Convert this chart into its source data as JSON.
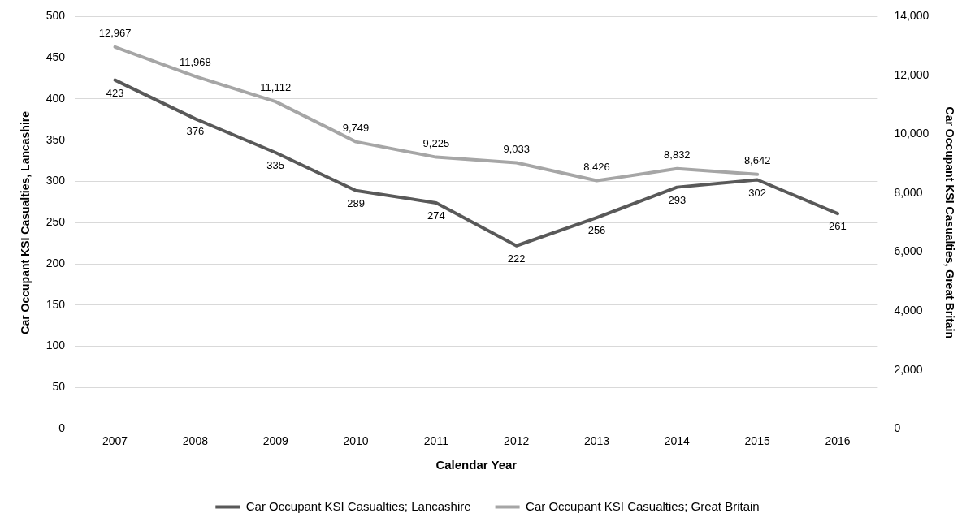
{
  "chart_data": {
    "type": "line",
    "categories": [
      "2007",
      "2008",
      "2009",
      "2010",
      "2011",
      "2012",
      "2013",
      "2014",
      "2015",
      "2016"
    ],
    "xlabel": "Calendar Year",
    "ylabel": "Car Occupant KSI Casualties, Lancashire",
    "y2label": "Car Occupant KSI Casualties, Great Britain",
    "series": [
      {
        "name": "Car Occupant KSI Casualties; Lancashire",
        "color": "#595959",
        "values": [
          423,
          376,
          335,
          289,
          274,
          222,
          256,
          293,
          302,
          261
        ],
        "value_labels": [
          "423",
          "376",
          "335",
          "289",
          "274",
          "222",
          "256",
          "293",
          "302",
          "261"
        ]
      },
      {
        "name": "Car Occupant KSI Casualties; Great Britain",
        "color": "#a6a6a6",
        "axis": "y2",
        "values": [
          12967,
          11968,
          11112,
          9749,
          9225,
          9033,
          8426,
          8832,
          8642,
          null
        ],
        "value_labels": [
          "12,967",
          "11,968",
          "11,112",
          "9,749",
          "9,225",
          "9,033",
          "8,426",
          "8,832",
          "8,642",
          null
        ]
      }
    ],
    "ylim": [
      0,
      500
    ],
    "yticks": [
      0,
      50,
      100,
      150,
      200,
      250,
      300,
      350,
      400,
      450,
      500
    ],
    "y2lim": [
      0,
      14000
    ],
    "y2ticks": [
      0,
      {
        "value": 2000,
        "label": "2,000"
      },
      {
        "value": 4000,
        "label": "4,000"
      },
      {
        "value": 6000,
        "label": "6,000"
      },
      {
        "value": 8000,
        "label": "8,000"
      },
      {
        "value": 10000,
        "label": "10,000"
      },
      {
        "value": 12000,
        "label": "12,000"
      },
      {
        "value": 14000,
        "label": "14,000"
      }
    ],
    "grid": "y",
    "legend": "bottom",
    "marker": "none",
    "line_style": "solid"
  }
}
